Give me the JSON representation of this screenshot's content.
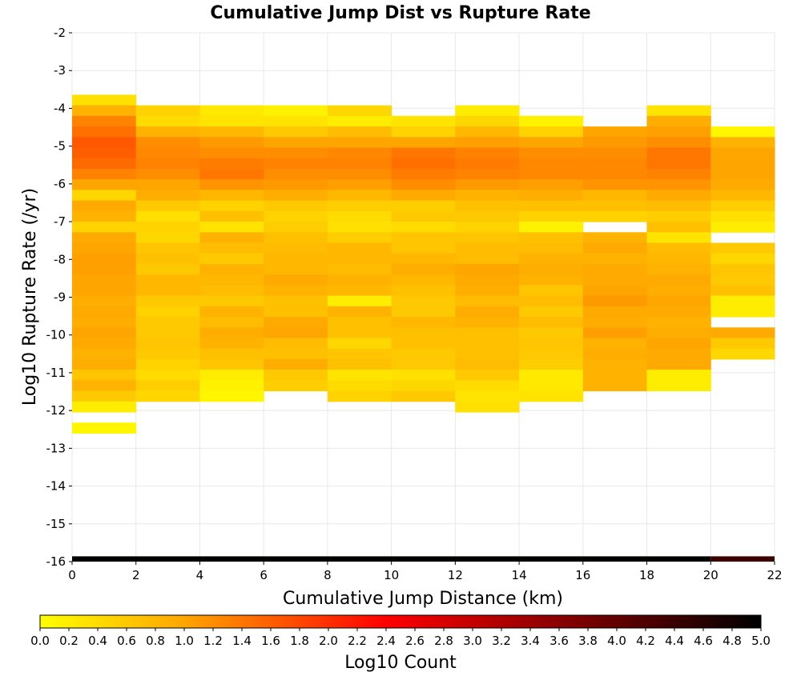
{
  "chart_data": {
    "type": "heatmap",
    "title": "Cumulative Jump Dist vs Rupture Rate",
    "xlabel": "Cumulative Jump Distance (km)",
    "ylabel": "Log10 Rupture Rate (/yr)",
    "xlim": [
      0,
      22
    ],
    "ylim": [
      -16,
      -2
    ],
    "x_ticks": [
      0,
      2,
      4,
      6,
      8,
      10,
      12,
      14,
      16,
      18,
      20,
      22
    ],
    "y_ticks": [
      -2,
      -3,
      -4,
      -5,
      -6,
      -7,
      -8,
      -9,
      -10,
      -11,
      -12,
      -13,
      -14,
      -15,
      -16
    ],
    "grid": true,
    "colorbar": {
      "label": "Log10 Count",
      "range": [
        0,
        5
      ],
      "ticks": [
        "0.0",
        "0.2",
        "0.4",
        "0.6",
        "0.8",
        "1.0",
        "1.2",
        "1.4",
        "1.6",
        "1.8",
        "2.0",
        "2.2",
        "2.4",
        "2.6",
        "2.8",
        "3.0",
        "3.2",
        "3.4",
        "3.6",
        "3.8",
        "4.0",
        "4.2",
        "4.4",
        "4.6",
        "4.8",
        "5.0"
      ],
      "colors": [
        "#ffff00",
        "#ffa500",
        "#ff0000",
        "#000000"
      ]
    },
    "x_bin_width_km": 2,
    "y_bin_width_log10": 0.28,
    "x_bin_starts": [
      0,
      2,
      4,
      6,
      8,
      10,
      12,
      14,
      16,
      18,
      20
    ],
    "y_bin_starts": [
      -3.64,
      -3.92,
      -4.2,
      -4.48,
      -4.76,
      -5.04,
      -5.32,
      -5.6,
      -5.88,
      -6.16,
      -6.44,
      -6.72,
      -7.0,
      -7.28,
      -7.56,
      -7.84,
      -8.12,
      -8.4,
      -8.68,
      -8.96,
      -9.24,
      -9.52,
      -9.8,
      -10.08,
      -10.36,
      -10.64,
      -10.92,
      -11.2,
      -11.48,
      -11.76,
      -12.04,
      -12.32
    ],
    "z_log10_count": [
      [
        0.35,
        0.85,
        1.3,
        1.45,
        1.65,
        1.6,
        1.5,
        1.3,
        1.0,
        0.45,
        0.95,
        0.85,
        0.5,
        0.95,
        1.0,
        1.05,
        1.05,
        1.0,
        1.0,
        0.9,
        0.95,
        0.9,
        1.0,
        0.95,
        0.85,
        0.9,
        0.65,
        0.85,
        0.6,
        0.2,
        null,
        0.1
      ],
      [
        null,
        0.5,
        0.4,
        0.85,
        1.2,
        1.25,
        1.3,
        1.2,
        1.0,
        0.9,
        0.6,
        0.35,
        0.5,
        0.45,
        0.65,
        0.7,
        0.6,
        0.8,
        0.8,
        0.6,
        0.5,
        0.6,
        0.6,
        0.65,
        0.6,
        0.5,
        0.4,
        0.55,
        0.45,
        null,
        null,
        null
      ],
      [
        null,
        0.25,
        0.3,
        0.8,
        1.1,
        1.2,
        1.35,
        1.4,
        1.15,
        0.8,
        0.5,
        0.7,
        0.3,
        0.85,
        0.75,
        0.6,
        0.85,
        0.8,
        0.75,
        0.6,
        0.85,
        0.75,
        0.9,
        0.85,
        0.7,
        0.65,
        0.2,
        0.15,
        0.1,
        null,
        null,
        null
      ],
      [
        null,
        0.15,
        0.3,
        0.6,
        1.0,
        1.2,
        1.3,
        1.2,
        1.1,
        0.9,
        0.6,
        0.5,
        0.55,
        0.7,
        0.75,
        0.8,
        0.8,
        0.95,
        0.85,
        0.7,
        0.7,
        0.95,
        1.0,
        0.75,
        0.7,
        0.9,
        0.6,
        0.55,
        null,
        null,
        null,
        null
      ],
      [
        null,
        0.45,
        0.2,
        0.75,
        1.0,
        1.25,
        1.3,
        1.2,
        1.05,
        0.8,
        0.55,
        0.4,
        0.35,
        0.55,
        0.8,
        0.8,
        0.75,
        0.85,
        0.8,
        0.2,
        0.85,
        0.7,
        0.7,
        0.45,
        0.65,
        0.7,
        0.3,
        0.4,
        0.5,
        null,
        null,
        null
      ],
      [
        null,
        null,
        0.3,
        0.5,
        1.0,
        1.4,
        1.45,
        1.35,
        1.2,
        0.95,
        0.55,
        0.6,
        0.4,
        0.65,
        0.65,
        0.8,
        0.9,
        0.8,
        0.7,
        0.6,
        0.6,
        0.8,
        0.7,
        0.7,
        0.6,
        0.6,
        0.35,
        0.45,
        0.6,
        null,
        null,
        null
      ],
      [
        null,
        0.2,
        0.45,
        0.8,
        1.05,
        1.3,
        1.35,
        1.3,
        1.1,
        0.85,
        0.7,
        0.6,
        0.5,
        0.65,
        0.75,
        0.75,
        1.0,
        0.95,
        0.9,
        0.75,
        0.9,
        0.85,
        0.7,
        0.7,
        0.7,
        0.75,
        0.6,
        0.4,
        0.3,
        0.35,
        null,
        null
      ],
      [
        null,
        null,
        0.15,
        0.5,
        1.0,
        1.2,
        1.25,
        1.25,
        1.05,
        0.9,
        0.7,
        0.5,
        0.15,
        0.7,
        0.75,
        0.85,
        0.9,
        0.85,
        0.65,
        0.75,
        0.6,
        0.75,
        0.6,
        0.65,
        0.6,
        0.55,
        0.25,
        0.25,
        0.3,
        null,
        null,
        null
      ],
      [
        null,
        null,
        null,
        1.0,
        1.1,
        1.2,
        1.25,
        1.25,
        1.15,
        0.8,
        0.7,
        0.5,
        null,
        0.85,
        0.95,
        0.85,
        0.95,
        0.95,
        1.0,
        1.1,
        0.95,
        0.9,
        1.05,
        0.85,
        0.9,
        0.85,
        0.85,
        0.85,
        null,
        null,
        null,
        null
      ],
      [
        null,
        0.3,
        0.9,
        1.05,
        1.2,
        1.4,
        1.4,
        1.3,
        1.15,
        0.95,
        0.75,
        0.55,
        0.7,
        0.3,
        0.75,
        0.8,
        0.85,
        0.95,
        0.9,
        1.0,
        0.95,
        0.85,
        0.9,
        1.0,
        0.95,
        0.95,
        0.2,
        0.2,
        null,
        null,
        null,
        null
      ],
      [
        null,
        null,
        null,
        0.1,
        0.85,
        1.0,
        1.0,
        1.0,
        0.95,
        0.8,
        0.55,
        0.35,
        0.2,
        null,
        0.6,
        0.45,
        0.65,
        0.6,
        0.7,
        0.2,
        0.2,
        null,
        0.95,
        0.6,
        0.45,
        null,
        null,
        null,
        null,
        null,
        null,
        null
      ]
    ],
    "baseline_band": {
      "y_range": [
        -16,
        -15.86
      ],
      "x_ranges": [
        [
          0,
          20
        ],
        [
          20,
          22
        ]
      ],
      "log10_count": [
        4.95,
        4.4
      ]
    }
  }
}
